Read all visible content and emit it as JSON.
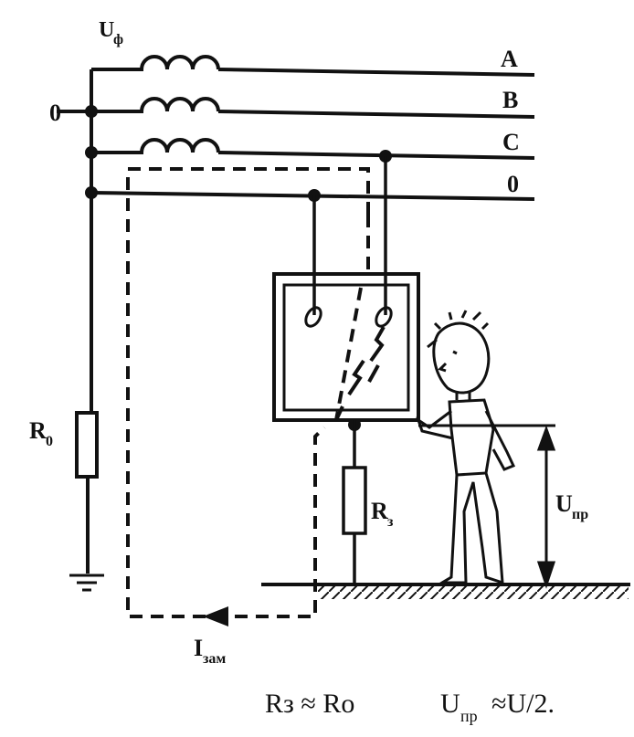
{
  "diagram": {
    "labels": {
      "phase_voltage": "U",
      "phase_voltage_sub": "ф",
      "neutral_left": "0",
      "line_a": "A",
      "line_b": "B",
      "line_c": "C",
      "line_zero": "0",
      "r_zero": "R",
      "r_zero_sub": "0",
      "r_ground": "R",
      "r_ground_sub": "з",
      "touch_voltage": "U",
      "touch_voltage_sub": "пр",
      "fault_current": "I",
      "fault_current_sub": "зам"
    },
    "formula": {
      "part1": "Rз ≈ Ro",
      "part2_main": "U",
      "part2_sub": "пр",
      "part2_tail": "≈U/2."
    }
  }
}
